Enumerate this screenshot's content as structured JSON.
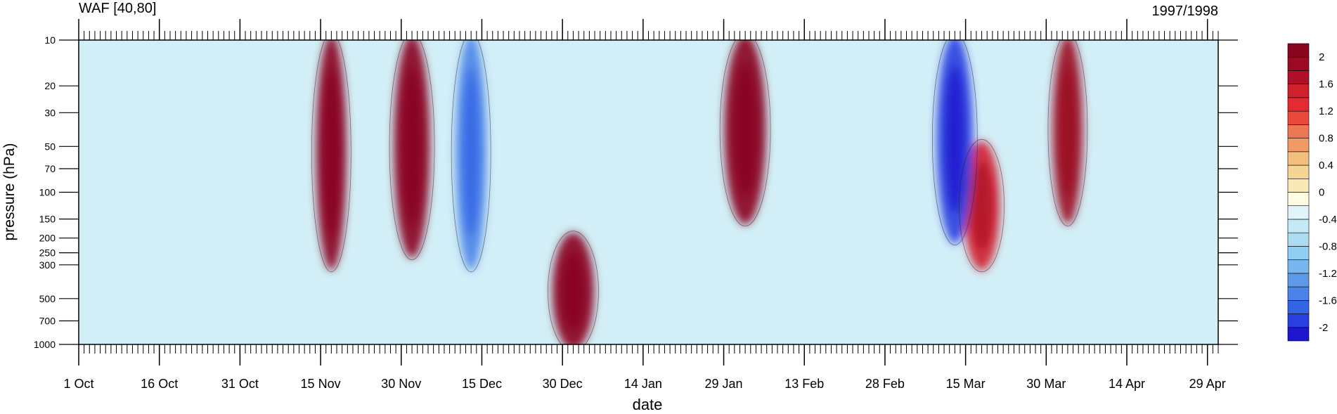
{
  "chart_data": {
    "type": "heatmap",
    "title_left": "WAF [40,80]",
    "title_right": "1997/1998",
    "xlabel": "date",
    "ylabel": "pressure (hPa)",
    "y_scale": "log",
    "y_reversed": true,
    "ylim": [
      1000,
      10
    ],
    "x_range_days": [
      0,
      212
    ],
    "x_ticks": [
      {
        "label": "1 Oct",
        "day": 0
      },
      {
        "label": "16 Oct",
        "day": 15
      },
      {
        "label": "31 Oct",
        "day": 30
      },
      {
        "label": "15 Nov",
        "day": 45
      },
      {
        "label": "30 Nov",
        "day": 60
      },
      {
        "label": "15 Dec",
        "day": 75
      },
      {
        "label": "30 Dec",
        "day": 90
      },
      {
        "label": "14 Jan",
        "day": 105
      },
      {
        "label": "29 Jan",
        "day": 120
      },
      {
        "label": "13 Feb",
        "day": 135
      },
      {
        "label": "28 Feb",
        "day": 150
      },
      {
        "label": "15 Mar",
        "day": 165
      },
      {
        "label": "30 Mar",
        "day": 180
      },
      {
        "label": "14 Apr",
        "day": 195
      },
      {
        "label": "29 Apr",
        "day": 210
      }
    ],
    "y_ticks": [
      10,
      20,
      30,
      50,
      70,
      100,
      150,
      200,
      250,
      300,
      500,
      700,
      1000
    ],
    "colorbar": {
      "levels": [
        -2.2,
        -2,
        -1.8,
        -1.6,
        -1.4,
        -1.2,
        -1,
        -0.8,
        -0.6,
        -0.4,
        -0.2,
        0,
        0.2,
        0.4,
        0.6,
        0.8,
        1,
        1.2,
        1.4,
        1.6,
        1.8,
        2,
        2.2
      ],
      "colors": [
        "#1f15cf",
        "#2a3fe0",
        "#3464e6",
        "#4a84e8",
        "#5c9ae8",
        "#78b6ef",
        "#92cdf2",
        "#acdcf2",
        "#c6e9f6",
        "#e0f5fa",
        "#fdfbe2",
        "#f9e9b6",
        "#f6d594",
        "#f3bf7c",
        "#f09b66",
        "#ed7753",
        "#e9483a",
        "#e52b32",
        "#d01f2d",
        "#b01027",
        "#9b0a22",
        "#8a0520"
      ],
      "labels": [
        "2",
        "1.6",
        "1.2",
        "0.8",
        "0.4",
        "0",
        "-0.4",
        "-0.8",
        "-1.2",
        "-1.6",
        "-2"
      ]
    },
    "features": [
      {
        "day": 47,
        "p_top": 10,
        "p_bottom": 300,
        "value": 2.2
      },
      {
        "day": 62,
        "p_top": 10,
        "p_bottom": 250,
        "value": 2.2
      },
      {
        "day": 124,
        "p_top": 10,
        "p_bottom": 150,
        "value": 2.0
      },
      {
        "day": 184,
        "p_top": 10,
        "p_bottom": 150,
        "value": 1.8
      },
      {
        "day": 168,
        "p_top": 50,
        "p_bottom": 300,
        "value": 1.5
      },
      {
        "day": 92,
        "p_top": 200,
        "p_bottom": 1000,
        "value": 2.0
      },
      {
        "day": 73,
        "p_top": 10,
        "p_bottom": 300,
        "value": -1.6
      },
      {
        "day": 163,
        "p_top": 10,
        "p_bottom": 200,
        "value": -2.0
      }
    ]
  }
}
